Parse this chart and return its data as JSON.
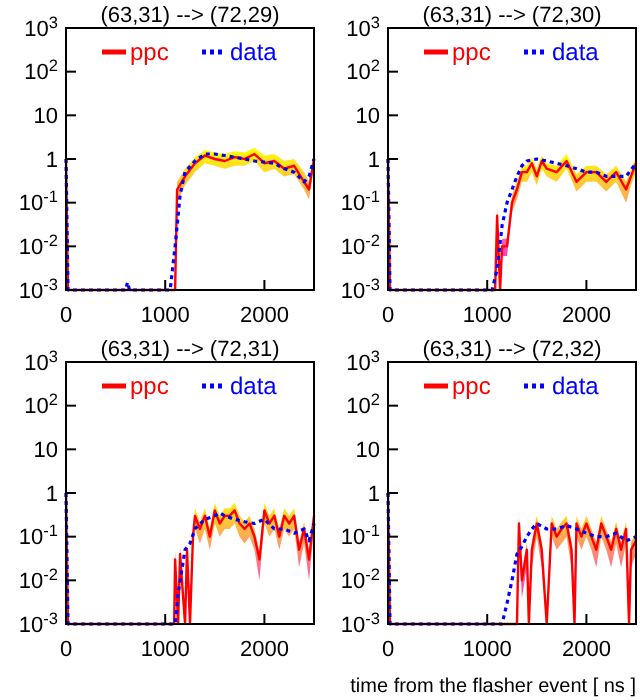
{
  "chart_data": [
    {
      "type": "line",
      "title": "(63,31) --> (72,29)",
      "xlim": [
        0,
        2500
      ],
      "xticks": [
        0,
        1000,
        2000
      ],
      "ylim": [
        0.001,
        1000
      ],
      "log": true,
      "legend": "top",
      "marker": "none",
      "yticks": [
        {
          "value": 1000,
          "label": "10$^{3}$"
        },
        {
          "value": 100,
          "label": "10$^{2}$"
        },
        {
          "value": 10,
          "label": "10"
        },
        {
          "value": 1,
          "label": "1"
        },
        {
          "value": 0.1,
          "label": "10$^{-1}$"
        },
        {
          "value": 0.01,
          "label": "10$^{-2}$"
        },
        {
          "value": 0.001,
          "label": "10$^{-3}$"
        }
      ],
      "series": [
        {
          "name": "ppc",
          "color": "#ff0000",
          "line_style": "solid",
          "x": [
            0,
            20,
            1100,
            1120,
            1200,
            1300,
            1400,
            1500,
            1600,
            1700,
            1800,
            1900,
            2000,
            2100,
            2200,
            2300,
            2400,
            2450,
            2500
          ],
          "values": [
            1,
            0.001,
            0.001,
            0.2,
            0.4,
            0.8,
            1.2,
            1.0,
            0.9,
            1.1,
            1.0,
            1.3,
            0.8,
            0.9,
            0.6,
            0.7,
            0.3,
            0.2,
            1.0
          ],
          "upper": [
            1,
            0.001,
            0.001,
            0.3,
            0.6,
            1.1,
            1.6,
            1.4,
            1.3,
            1.5,
            1.4,
            1.8,
            1.2,
            1.3,
            0.9,
            1.0,
            0.5,
            0.3,
            1.3
          ],
          "lower": [
            1,
            0.001,
            0.001,
            0.1,
            0.25,
            0.5,
            0.8,
            0.7,
            0.6,
            0.7,
            0.7,
            0.9,
            0.5,
            0.6,
            0.4,
            0.45,
            0.2,
            0.12,
            0.7
          ]
        },
        {
          "name": "data",
          "color": "#0000ff",
          "line_style": "dotted",
          "x": [
            0,
            20,
            600,
            620,
            640,
            1050,
            1100,
            1150,
            1200,
            1300,
            1400,
            1500,
            1600,
            1700,
            1800,
            1900,
            2000,
            2100,
            2200,
            2300,
            2400,
            2450,
            2500
          ],
          "values": [
            1,
            0.001,
            0.001,
            0.0015,
            0.001,
            0.001,
            0.01,
            0.15,
            0.5,
            0.9,
            1.3,
            1.3,
            1.2,
            1.1,
            1.0,
            0.9,
            0.85,
            0.8,
            0.6,
            0.5,
            0.3,
            0.4,
            1.0
          ]
        }
      ]
    },
    {
      "type": "line",
      "title": "(63,31) --> (72,30)",
      "xlim": [
        0,
        2500
      ],
      "xticks": [
        0,
        1000,
        2000
      ],
      "ylim": [
        0.001,
        1000
      ],
      "log": true,
      "legend": "top",
      "marker": "none",
      "yticks": [
        {
          "value": 1000,
          "label": "10$^{3}$"
        },
        {
          "value": 100,
          "label": "10$^{2}$"
        },
        {
          "value": 10,
          "label": "10"
        },
        {
          "value": 1,
          "label": "1"
        },
        {
          "value": 0.1,
          "label": "10$^{-1}$"
        },
        {
          "value": 0.01,
          "label": "10$^{-2}$"
        },
        {
          "value": 0.001,
          "label": "10$^{-3}$"
        }
      ],
      "series": [
        {
          "name": "ppc",
          "color": "#ff0000",
          "line_style": "solid",
          "x": [
            0,
            20,
            1080,
            1100,
            1130,
            1150,
            1200,
            1250,
            1300,
            1350,
            1400,
            1450,
            1500,
            1550,
            1600,
            1700,
            1800,
            1900,
            2000,
            2100,
            2200,
            2300,
            2400,
            2450,
            2500
          ],
          "values": [
            1,
            0.001,
            0.001,
            0.05,
            0.001,
            0.01,
            0.01,
            0.1,
            0.2,
            0.5,
            0.5,
            0.8,
            0.4,
            0.9,
            0.6,
            0.5,
            0.9,
            0.3,
            0.5,
            0.5,
            0.3,
            0.5,
            0.2,
            0.4,
            0.8
          ],
          "upper": [
            1,
            0.001,
            0.001,
            0.08,
            0.001,
            0.015,
            0.015,
            0.15,
            0.3,
            0.7,
            0.7,
            1.1,
            0.6,
            1.2,
            0.8,
            0.7,
            1.3,
            0.45,
            0.7,
            0.7,
            0.45,
            0.7,
            0.3,
            0.6,
            1.1
          ],
          "lower": [
            1,
            0.001,
            0.001,
            0.03,
            0.001,
            0.006,
            0.006,
            0.06,
            0.12,
            0.3,
            0.3,
            0.5,
            0.25,
            0.6,
            0.4,
            0.3,
            0.6,
            0.18,
            0.3,
            0.3,
            0.18,
            0.3,
            0.1,
            0.25,
            0.5
          ]
        },
        {
          "name": "data",
          "color": "#0000ff",
          "line_style": "dotted",
          "x": [
            0,
            20,
            1050,
            1100,
            1150,
            1200,
            1250,
            1300,
            1350,
            1400,
            1500,
            1600,
            1700,
            1800,
            1900,
            2000,
            2100,
            2200,
            2300,
            2400,
            2500
          ],
          "values": [
            1,
            0.001,
            0.001,
            0.003,
            0.03,
            0.1,
            0.2,
            0.4,
            0.7,
            0.9,
            1.0,
            0.9,
            0.8,
            0.7,
            0.6,
            0.5,
            0.5,
            0.4,
            0.4,
            0.4,
            0.8
          ]
        }
      ]
    },
    {
      "type": "line",
      "title": "(63,31) --> (72,31)",
      "xlim": [
        0,
        2500
      ],
      "xticks": [
        0,
        1000,
        2000
      ],
      "ylim": [
        0.001,
        1000
      ],
      "log": true,
      "legend": "top",
      "marker": "none",
      "yticks": [
        {
          "value": 1000,
          "label": "10$^{3}$"
        },
        {
          "value": 100,
          "label": "10$^{2}$"
        },
        {
          "value": 10,
          "label": "10"
        },
        {
          "value": 1,
          "label": "1"
        },
        {
          "value": 0.1,
          "label": "10$^{-1}$"
        },
        {
          "value": 0.01,
          "label": "10$^{-2}$"
        },
        {
          "value": 0.001,
          "label": "10$^{-3}$"
        }
      ],
      "series": [
        {
          "name": "ppc",
          "color": "#ff0000",
          "line_style": "solid",
          "x": [
            0,
            20,
            1090,
            1100,
            1130,
            1150,
            1200,
            1220,
            1250,
            1280,
            1300,
            1350,
            1400,
            1450,
            1500,
            1550,
            1600,
            1650,
            1700,
            1750,
            1800,
            1850,
            1900,
            1950,
            2000,
            2050,
            2100,
            2150,
            2200,
            2250,
            2300,
            2350,
            2400,
            2450,
            2500
          ],
          "values": [
            1,
            0.001,
            0.001,
            0.03,
            0.001,
            0.04,
            0.001,
            0.05,
            0.001,
            0.1,
            0.3,
            0.15,
            0.3,
            0.1,
            0.4,
            0.2,
            0.3,
            0.3,
            0.4,
            0.2,
            0.15,
            0.2,
            0.1,
            0.03,
            0.4,
            0.2,
            0.3,
            0.1,
            0.3,
            0.2,
            0.3,
            0.05,
            0.15,
            0.03,
            0.3
          ],
          "upper": [
            1,
            0.001,
            0.001,
            0.05,
            0.001,
            0.06,
            0.001,
            0.07,
            0.001,
            0.15,
            0.45,
            0.22,
            0.45,
            0.15,
            0.6,
            0.3,
            0.45,
            0.45,
            0.6,
            0.3,
            0.22,
            0.3,
            0.15,
            0.045,
            0.6,
            0.3,
            0.45,
            0.15,
            0.45,
            0.3,
            0.45,
            0.075,
            0.22,
            0.045,
            0.45
          ],
          "lower": [
            1,
            0.001,
            0.001,
            0.015,
            0.001,
            0.02,
            0.001,
            0.025,
            0.001,
            0.05,
            0.15,
            0.07,
            0.15,
            0.05,
            0.2,
            0.1,
            0.15,
            0.15,
            0.2,
            0.1,
            0.07,
            0.1,
            0.05,
            0.01,
            0.2,
            0.1,
            0.15,
            0.05,
            0.15,
            0.1,
            0.15,
            0.02,
            0.07,
            0.01,
            0.15
          ]
        },
        {
          "name": "data",
          "color": "#0000ff",
          "line_style": "dotted",
          "x": [
            0,
            20,
            1100,
            1130,
            1200,
            1250,
            1300,
            1400,
            1500,
            1550,
            1600,
            1700,
            1800,
            1900,
            2000,
            2100,
            2200,
            2300,
            2400,
            2450,
            2500
          ],
          "values": [
            1,
            0.001,
            0.001,
            0.005,
            0.05,
            0.07,
            0.15,
            0.25,
            0.3,
            0.35,
            0.3,
            0.25,
            0.22,
            0.2,
            0.25,
            0.15,
            0.15,
            0.12,
            0.15,
            0.08,
            0.2
          ]
        }
      ]
    },
    {
      "type": "line",
      "title": "(63,31) --> (72,32)",
      "xlabel": "time from the flasher event [ ns ]",
      "xlim": [
        0,
        2500
      ],
      "xticks": [
        0,
        1000,
        2000
      ],
      "ylim": [
        0.001,
        1000
      ],
      "log": true,
      "legend": "top",
      "marker": "none",
      "yticks": [
        {
          "value": 1000,
          "label": "10$^{3}$"
        },
        {
          "value": 100,
          "label": "10$^{2}$"
        },
        {
          "value": 10,
          "label": "10"
        },
        {
          "value": 1,
          "label": "1"
        },
        {
          "value": 0.1,
          "label": "10$^{-1}$"
        },
        {
          "value": 0.01,
          "label": "10$^{-2}$"
        },
        {
          "value": 0.001,
          "label": "10$^{-3}$"
        }
      ],
      "series": [
        {
          "name": "ppc",
          "color": "#ff0000",
          "line_style": "solid",
          "x": [
            0,
            20,
            1300,
            1320,
            1350,
            1400,
            1420,
            1450,
            1500,
            1550,
            1600,
            1650,
            1700,
            1750,
            1800,
            1850,
            1880,
            1900,
            1950,
            2000,
            2050,
            2100,
            2150,
            2200,
            2250,
            2300,
            2350,
            2400,
            2430,
            2450,
            2500
          ],
          "values": [
            1,
            0.001,
            0.001,
            0.2,
            0.01,
            0.05,
            0.001,
            0.05,
            0.2,
            0.05,
            0.001,
            0.2,
            0.1,
            0.15,
            0.2,
            0.05,
            0.001,
            0.2,
            0.1,
            0.2,
            0.1,
            0.05,
            0.2,
            0.1,
            0.05,
            0.15,
            0.05,
            0.15,
            0.001,
            0.05,
            0.08
          ],
          "upper": [
            1,
            0.001,
            0.001,
            0.3,
            0.015,
            0.075,
            0.001,
            0.075,
            0.3,
            0.075,
            0.001,
            0.3,
            0.15,
            0.22,
            0.3,
            0.075,
            0.001,
            0.3,
            0.15,
            0.3,
            0.15,
            0.075,
            0.3,
            0.15,
            0.075,
            0.22,
            0.075,
            0.22,
            0.001,
            0.075,
            0.12
          ],
          "lower": [
            1,
            0.001,
            0.001,
            0.1,
            0.004,
            0.02,
            0.001,
            0.02,
            0.1,
            0.02,
            0.001,
            0.1,
            0.05,
            0.07,
            0.1,
            0.02,
            0.001,
            0.1,
            0.05,
            0.1,
            0.05,
            0.02,
            0.1,
            0.05,
            0.02,
            0.07,
            0.02,
            0.07,
            0.001,
            0.02,
            0.04
          ]
        },
        {
          "name": "data",
          "color": "#0000ff",
          "line_style": "dotted",
          "x": [
            0,
            20,
            1150,
            1200,
            1250,
            1300,
            1350,
            1400,
            1450,
            1500,
            1600,
            1700,
            1800,
            1900,
            2000,
            2100,
            2200,
            2300,
            2400,
            2500
          ],
          "values": [
            1,
            0.001,
            0.001,
            0.003,
            0.01,
            0.04,
            0.06,
            0.1,
            0.15,
            0.2,
            0.15,
            0.15,
            0.18,
            0.15,
            0.12,
            0.1,
            0.1,
            0.12,
            0.08,
            0.1
          ]
        }
      ]
    }
  ]
}
